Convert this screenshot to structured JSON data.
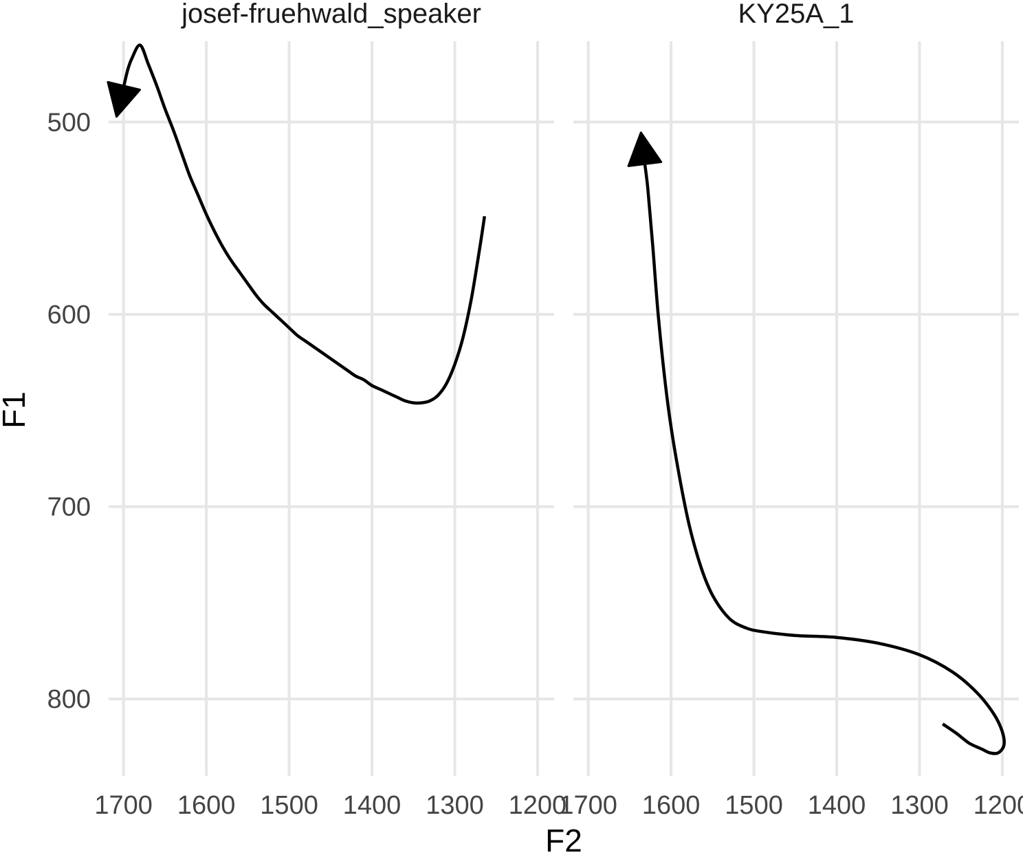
{
  "chart_data": {
    "type": "line",
    "xlabel": "F2",
    "ylabel": "F1",
    "x_reversed": true,
    "y_reversed": true,
    "grid": true,
    "legend": "none",
    "colors": {
      "line": "#000000",
      "grid": "#e6e6e6",
      "background": "#ffffff"
    },
    "ylim": [
      840,
      458
    ],
    "y_ticks": [
      500,
      600,
      700,
      800
    ],
    "panels": [
      {
        "title": "josef-fruehwald_speaker",
        "xlim": [
          1718,
          1180
        ],
        "x_ticks": [
          1700,
          1600,
          1500,
          1400,
          1300,
          1200
        ],
        "arrow_at_end": true,
        "x": [
          1264,
          1270,
          1280,
          1290,
          1300,
          1310,
          1320,
          1330,
          1340,
          1350,
          1360,
          1370,
          1380,
          1390,
          1400,
          1410,
          1420,
          1430,
          1440,
          1450,
          1460,
          1470,
          1480,
          1490,
          1500,
          1510,
          1520,
          1530,
          1540,
          1550,
          1560,
          1570,
          1580,
          1590,
          1600,
          1610,
          1620,
          1630,
          1640,
          1650,
          1660,
          1670,
          1680,
          1690,
          1695,
          1700
        ],
        "y": [
          549,
          566,
          592,
          612,
          626,
          636,
          642,
          645,
          646,
          646,
          645,
          643,
          641,
          639,
          637,
          634,
          632,
          629,
          626,
          623,
          620,
          617,
          614,
          611,
          607,
          603,
          599,
          595,
          590,
          584,
          578,
          572,
          565,
          557,
          548,
          538,
          528,
          516,
          504,
          493,
          481,
          470,
          460,
          467,
          473,
          482
        ]
      },
      {
        "title": "KY25A_1",
        "xlim": [
          1718,
          1180
        ],
        "x_ticks": [
          1700,
          1600,
          1500,
          1400,
          1300,
          1200
        ],
        "arrow_at_end": true,
        "x": [
          1272,
          1255,
          1240,
          1225,
          1215,
          1205,
          1198,
          1200,
          1210,
          1230,
          1260,
          1300,
          1350,
          1400,
          1450,
          1490,
          1510,
          1530,
          1550,
          1565,
          1580,
          1595,
          1605,
          1615,
          1622,
          1628,
          1632
        ],
        "y": [
          813,
          818,
          823,
          826,
          828,
          828,
          824,
          817,
          808,
          797,
          786,
          777,
          771,
          768,
          767,
          765,
          763,
          758,
          746,
          730,
          706,
          672,
          643,
          603,
          565,
          535,
          521
        ]
      }
    ]
  }
}
